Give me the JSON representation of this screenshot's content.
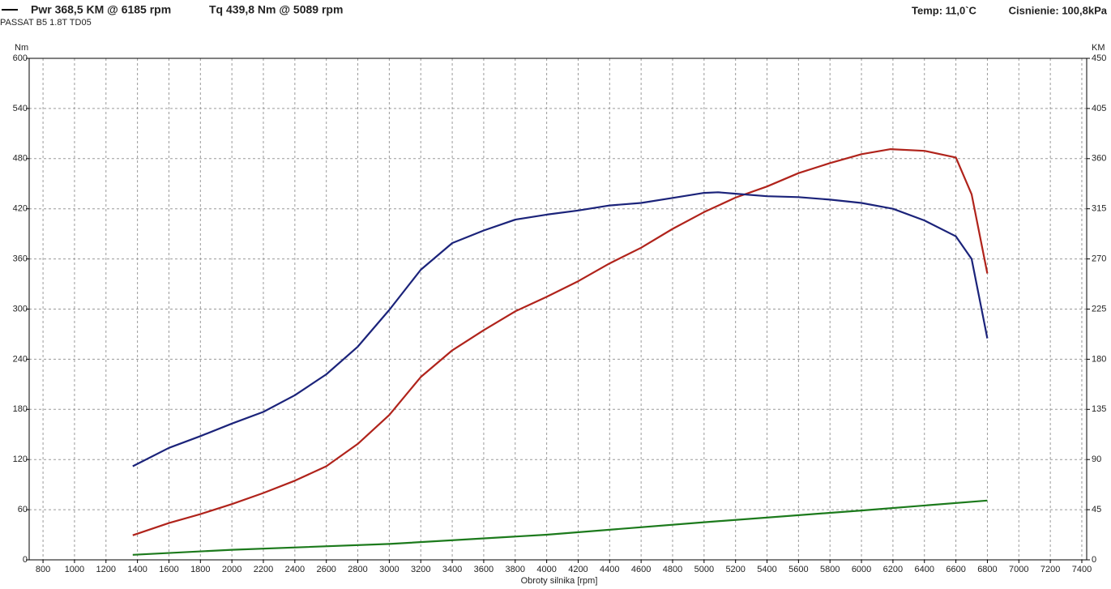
{
  "chart_data": {
    "type": "line",
    "subtitle": "PASSAT B5 1.8T TD05",
    "annotations": [
      "Temp: 11,0`C",
      "Cisnienie: 100,8kPa"
    ],
    "xlabel": "Obroty silnika [rpm]",
    "ylabel": "Nm",
    "y2label": "KM",
    "xlim": [
      712,
      7431
    ],
    "xticks": [
      800,
      1000,
      1200,
      1400,
      1600,
      1800,
      2000,
      2200,
      2400,
      2600,
      2800,
      3000,
      3200,
      3400,
      3600,
      3800,
      4000,
      4200,
      4400,
      4600,
      4800,
      5000,
      5200,
      5400,
      5600,
      5800,
      6000,
      6200,
      6400,
      6600,
      6800,
      7000,
      7200,
      7400
    ],
    "ylim": [
      0,
      600
    ],
    "yticks": [
      0,
      60,
      120,
      180,
      240,
      300,
      360,
      420,
      480,
      540,
      600
    ],
    "y2lim": [
      0,
      450
    ],
    "y2ticks": [
      0,
      45,
      90,
      135,
      180,
      225,
      270,
      315,
      360,
      405,
      450
    ],
    "grid": true,
    "series": [
      {
        "name": "Pwr  368,5 KM @ 6185 rpm",
        "color": "#b0231b",
        "axis": "y2",
        "x": [
          1370,
          1600,
          1800,
          2000,
          2200,
          2400,
          2600,
          2800,
          3000,
          3200,
          3400,
          3600,
          3800,
          4000,
          4200,
          4400,
          4600,
          4800,
          5000,
          5200,
          5400,
          5600,
          5800,
          6000,
          6185,
          6400,
          6600,
          6700,
          6800
        ],
        "values": [
          22,
          33,
          41,
          50,
          60,
          71,
          84,
          104,
          130,
          164,
          188,
          206,
          223,
          236,
          250,
          266,
          280,
          297,
          312,
          325,
          335,
          347,
          356,
          364,
          368.5,
          367,
          361,
          328,
          257
        ]
      },
      {
        "name": "Tq 439,8 Nm @ 5089 rpm",
        "color": "#1b237a",
        "x": [
          1370,
          1600,
          1800,
          2000,
          2200,
          2400,
          2600,
          2800,
          3000,
          3200,
          3400,
          3600,
          3800,
          4000,
          4200,
          4400,
          4600,
          4800,
          5000,
          5089,
          5200,
          5400,
          5600,
          5800,
          6000,
          6200,
          6400,
          6600,
          6700,
          6800
        ],
        "values": [
          112,
          134,
          148,
          163,
          177,
          197,
          222,
          255,
          299,
          347,
          379,
          394,
          407,
          413,
          418,
          424,
          427,
          433,
          439,
          439.8,
          438,
          435,
          434,
          431,
          427,
          420,
          406,
          387,
          360,
          265
        ]
      },
      {
        "color": "#1c7a1c",
        "x": [
          1370,
          2000,
          3000,
          4000,
          5000,
          6000,
          6800
        ],
        "values": [
          6,
          12,
          19,
          30,
          45,
          59,
          71
        ]
      }
    ]
  }
}
